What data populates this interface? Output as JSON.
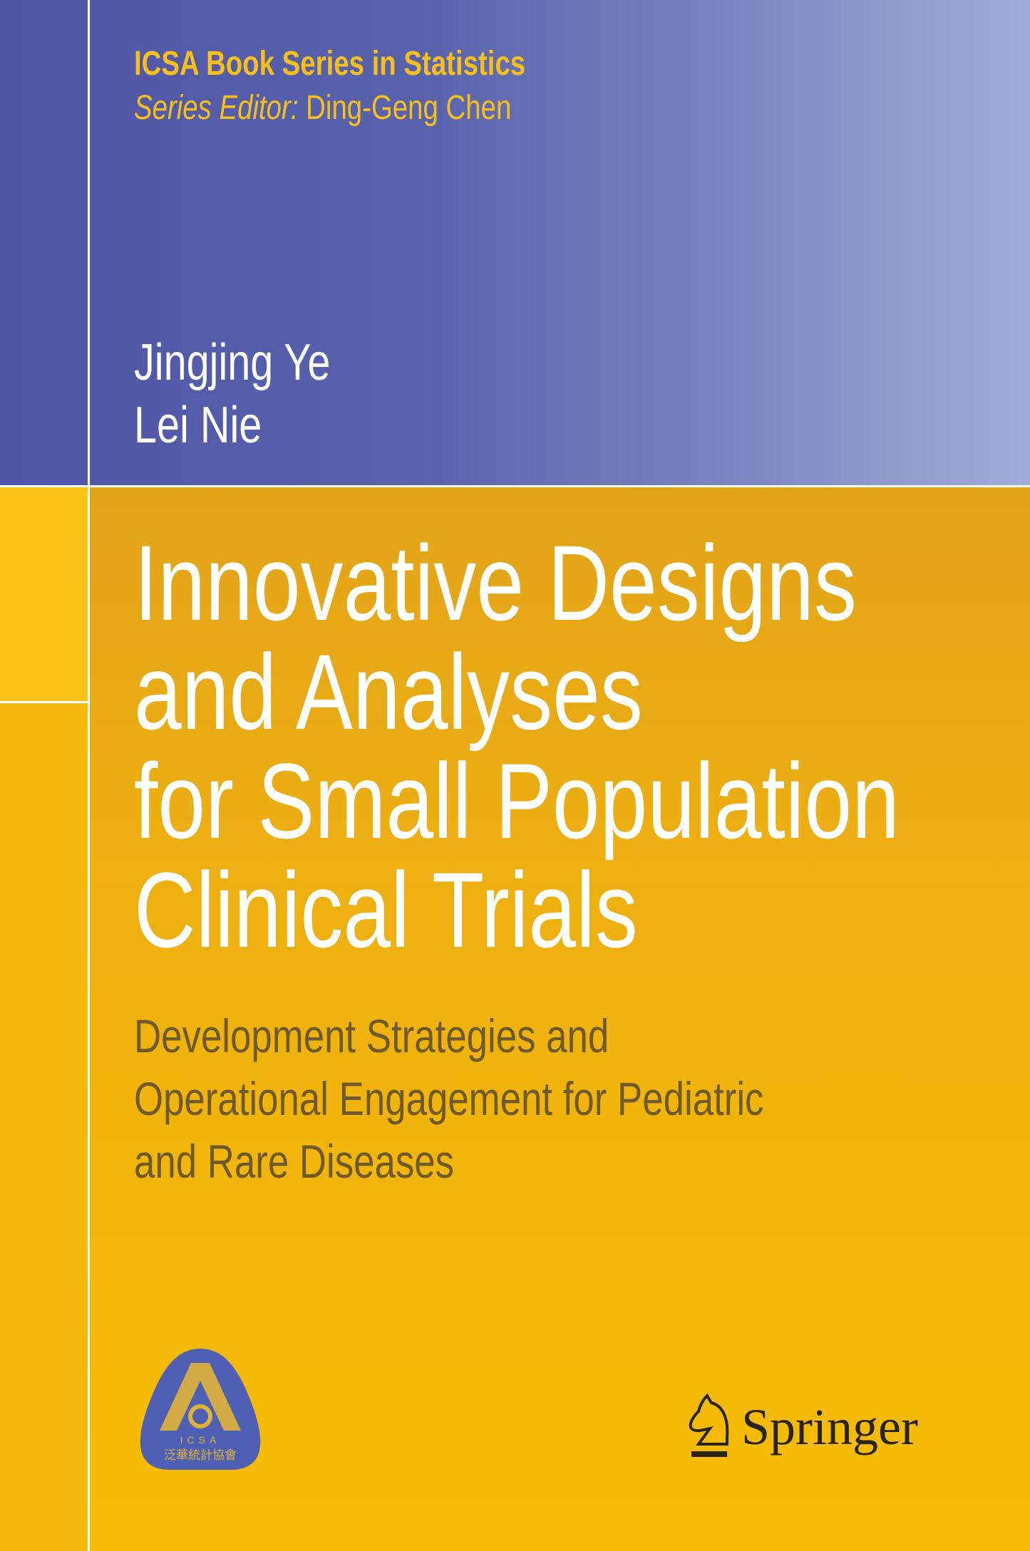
{
  "series": {
    "title": "ICSA Book Series in Statistics",
    "editor_label": "Series Editor:",
    "editor_name": "Ding-Geng Chen"
  },
  "authors": [
    "Jingjing Ye",
    "Lei Nie"
  ],
  "title_lines": [
    "Innovative Designs",
    "and Analyses",
    "for Small Population",
    "Clinical Trials"
  ],
  "subtitle_lines": [
    "Development Strategies and",
    "Operational Engagement for Pediatric",
    "and Rare Diseases"
  ],
  "logos": {
    "icsa": {
      "text": "ICSA",
      "chinese": "泛華統計協會",
      "color": "#4f5fb4"
    },
    "publisher": "Springer"
  },
  "colors": {
    "top_band": "#5862ac",
    "bottom_band": "#f0b30c",
    "series_text": "#f6bf1c",
    "subtitle_text": "#6e5a2c"
  }
}
